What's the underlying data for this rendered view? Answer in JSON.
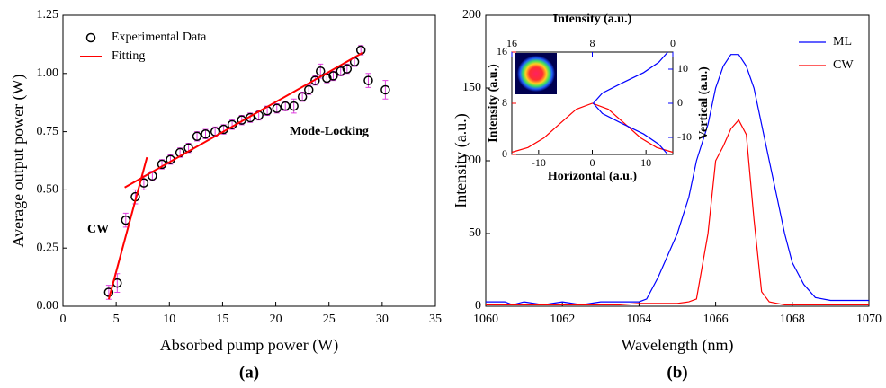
{
  "chart_data": [
    {
      "type": "scatter",
      "panel": "(a)",
      "xlabel": "Absorbed pump power (W)",
      "ylabel": "Average output power (W)",
      "xlim": [
        0,
        35
      ],
      "xticks": [
        0,
        5,
        10,
        15,
        20,
        25,
        30,
        35
      ],
      "ylim": [
        0,
        1.25
      ],
      "yticks": [
        {
          "value": 0,
          "label": "0.00"
        },
        {
          "value": 0.25,
          "label": "0.25"
        },
        {
          "value": 0.5,
          "label": "0.50"
        },
        {
          "value": 0.75,
          "label": "0.75"
        },
        {
          "value": 1,
          "label": "1.00"
        },
        {
          "value": 1.25,
          "label": "1.25"
        }
      ],
      "series": [
        {
          "name": "Experimental Data",
          "color": "#000000",
          "error_color": "#e040e0",
          "x": [
            4.3,
            5.1,
            5.9,
            6.8,
            7.6,
            8.4,
            9.3,
            10.1,
            11.0,
            11.8,
            12.6,
            13.4,
            14.3,
            15.1,
            15.9,
            16.8,
            17.6,
            18.4,
            19.2,
            20.1,
            20.9,
            21.7,
            22.5,
            23.1,
            23.7,
            24.2,
            24.8,
            25.4,
            26.1,
            26.7,
            27.4,
            28.0,
            28.7,
            30.3
          ],
          "values": [
            0.06,
            0.1,
            0.37,
            0.47,
            0.53,
            0.56,
            0.61,
            0.63,
            0.66,
            0.68,
            0.73,
            0.74,
            0.75,
            0.76,
            0.78,
            0.8,
            0.81,
            0.82,
            0.84,
            0.85,
            0.86,
            0.86,
            0.9,
            0.93,
            0.97,
            1.01,
            0.98,
            0.99,
            1.01,
            1.02,
            1.05,
            1.1,
            0.97,
            0.93
          ],
          "errors": [
            0.03,
            0.04,
            0.03,
            0.03,
            0.03,
            0.02,
            0.02,
            0.02,
            0.02,
            0.02,
            0.02,
            0.02,
            0.02,
            0.02,
            0.02,
            0.02,
            0.02,
            0.02,
            0.02,
            0.02,
            0.02,
            0.03,
            0.02,
            0.02,
            0.02,
            0.03,
            0.02,
            0.02,
            0.02,
            0.02,
            0.02,
            0.02,
            0.03,
            0.04
          ]
        },
        {
          "name": "Fitting",
          "type": "line",
          "color": "#ff0000",
          "x": [
            4.3,
            7.9,
            null,
            5.8,
            28.2
          ],
          "values": [
            0.03,
            0.64,
            null,
            0.51,
            1.09
          ]
        }
      ],
      "annotations": [
        {
          "text": "CW",
          "color": "#ff0000"
        },
        {
          "text": "Mode-Locking",
          "color": "#ff0000"
        }
      ]
    },
    {
      "type": "line",
      "panel": "(b)",
      "xlabel": "Wavelength (nm)",
      "ylabel": "Intensity (a.u.)",
      "xlim": [
        1060,
        1070
      ],
      "xticks": [
        1060,
        1062,
        1064,
        1066,
        1068,
        1070
      ],
      "ylim": [
        0,
        200
      ],
      "yticks": [
        0,
        50,
        100,
        150,
        200
      ],
      "x": [
        1060,
        1060.5,
        1060.7,
        1061,
        1061.5,
        1062,
        1062.5,
        1063,
        1063.5,
        1064,
        1064.2,
        1064.5,
        1064.8,
        1065,
        1065.3,
        1065.5,
        1065.8,
        1066,
        1066.2,
        1066.4,
        1066.6,
        1066.8,
        1067,
        1067.2,
        1067.4,
        1067.6,
        1067.8,
        1068,
        1068.3,
        1068.6,
        1069,
        1069.5,
        1070
      ],
      "series": [
        {
          "name": "ML",
          "color": "#0000ff",
          "values": [
            3,
            3,
            1,
            3,
            1,
            3,
            1,
            3,
            3,
            3,
            5,
            20,
            38,
            50,
            75,
            100,
            125,
            150,
            165,
            173,
            173,
            165,
            150,
            125,
            100,
            75,
            50,
            30,
            15,
            6,
            4,
            4,
            4
          ]
        },
        {
          "name": "CW",
          "color": "#ff0000",
          "values": [
            1,
            1,
            1,
            1,
            1,
            1,
            1,
            1,
            1,
            2,
            2,
            2,
            2,
            2,
            3,
            5,
            50,
            100,
            110,
            122,
            128,
            118,
            60,
            10,
            3,
            2,
            1,
            1,
            1,
            1,
            1,
            1,
            1
          ]
        }
      ]
    },
    {
      "type": "inset",
      "xlabel": "Horizontal (a.u.)",
      "ylabel": "Intensity (a.u.)",
      "x2label": "Intensity (a.u.)",
      "y2label": "Vertical (a.u.)",
      "xlim": [
        -15,
        15
      ],
      "xticks": [
        -10,
        0,
        10
      ],
      "ylim": [
        0,
        16
      ],
      "yticks": [
        0,
        8,
        16
      ],
      "x2lim": [
        16,
        0
      ],
      "x2ticks": [
        16,
        8,
        0
      ],
      "y2lim": [
        -15,
        15
      ],
      "y2ticks": [
        -10,
        0,
        10
      ],
      "series": [
        {
          "color": "#ff0000",
          "x": [
            -15,
            -12,
            -9,
            -6,
            -3,
            0,
            3,
            6,
            9,
            12,
            15
          ],
          "values": [
            0.35,
            1.08,
            2.6,
            4.85,
            7.06,
            8,
            7.06,
            4.85,
            2.6,
            1.08,
            0.35
          ]
        },
        {
          "color": "#0000ff",
          "axis": "y2",
          "y": [
            -15,
            -12,
            -9,
            -6,
            -3,
            0,
            3,
            6,
            9,
            12,
            15
          ],
          "values": [
            0.5,
            1.4,
            2.9,
            5,
            7,
            7.9,
            7,
            5,
            2.9,
            1.4,
            0.5
          ]
        }
      ]
    }
  ]
}
